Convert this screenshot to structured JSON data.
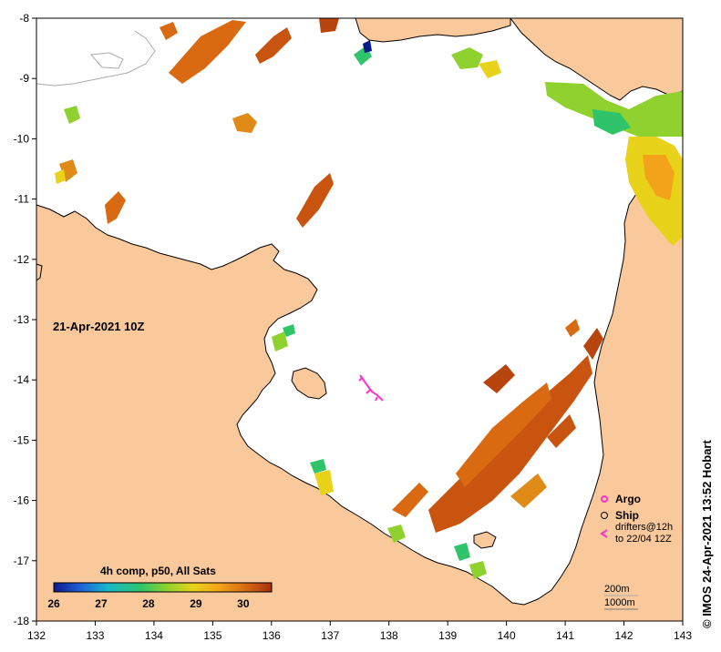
{
  "map": {
    "lon_ticks": [
      "132",
      "133",
      "134",
      "135",
      "136",
      "137",
      "138",
      "139",
      "140",
      "141",
      "142",
      "143"
    ],
    "lat_ticks": [
      "-8",
      "-9",
      "-10",
      "-11",
      "-12",
      "-13",
      "-14",
      "-15",
      "-16",
      "-17",
      "-18"
    ],
    "lon_range": [
      132,
      143
    ],
    "lat_range": [
      -8,
      -18
    ],
    "date_label": "21-Apr-2021 10Z",
    "credit": "© IMOS 24-Apr-2021 13:52 Hobart",
    "colors": {
      "land": "#f9c89b",
      "sea_nodata": "#ffffff",
      "coast": "#000000",
      "drifter": "#ff33cc"
    }
  },
  "colorbar": {
    "title": "4h comp, p50, All Sats",
    "ticks": [
      "26",
      "27",
      "28",
      "29",
      "30"
    ],
    "range": [
      26,
      30.6
    ],
    "colors": [
      "#0a1a8c",
      "#1f5fd6",
      "#16b9c9",
      "#2fc46a",
      "#8fd12e",
      "#e8d21a",
      "#f2a31a",
      "#d96a12",
      "#a6300d"
    ]
  },
  "legend": {
    "argo": "Argo",
    "ship": "Ship",
    "drifters_line1": "drifters@12h",
    "drifters_line2": "to 22/04 12Z",
    "isobath_200": "200m",
    "isobath_1000": "1000m"
  }
}
